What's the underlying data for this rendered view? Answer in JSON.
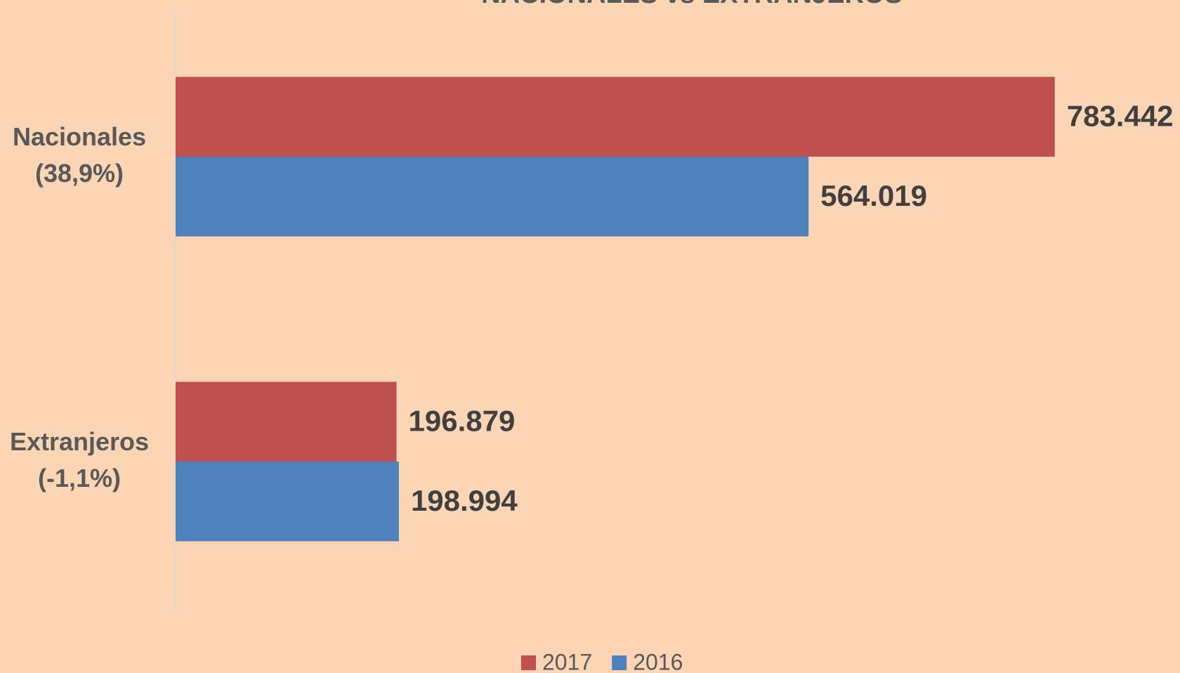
{
  "chart_data": {
    "type": "bar",
    "orientation": "horizontal",
    "title": "NACIONALES vs EXTRANJEROS",
    "categories": [
      "Nacionales (38,9%)",
      "Extranjeros (-1,1%)"
    ],
    "series": [
      {
        "name": "2017",
        "color": "#c0504d",
        "values": [
          783442,
          196879
        ],
        "value_labels": [
          "783.442",
          "196.879"
        ]
      },
      {
        "name": "2016",
        "color": "#4f81bd",
        "values": [
          564019,
          198994
        ],
        "value_labels": [
          "564.019",
          "198.994"
        ]
      }
    ],
    "xlim": [
      0,
      880000
    ],
    "legend": "bottom"
  }
}
